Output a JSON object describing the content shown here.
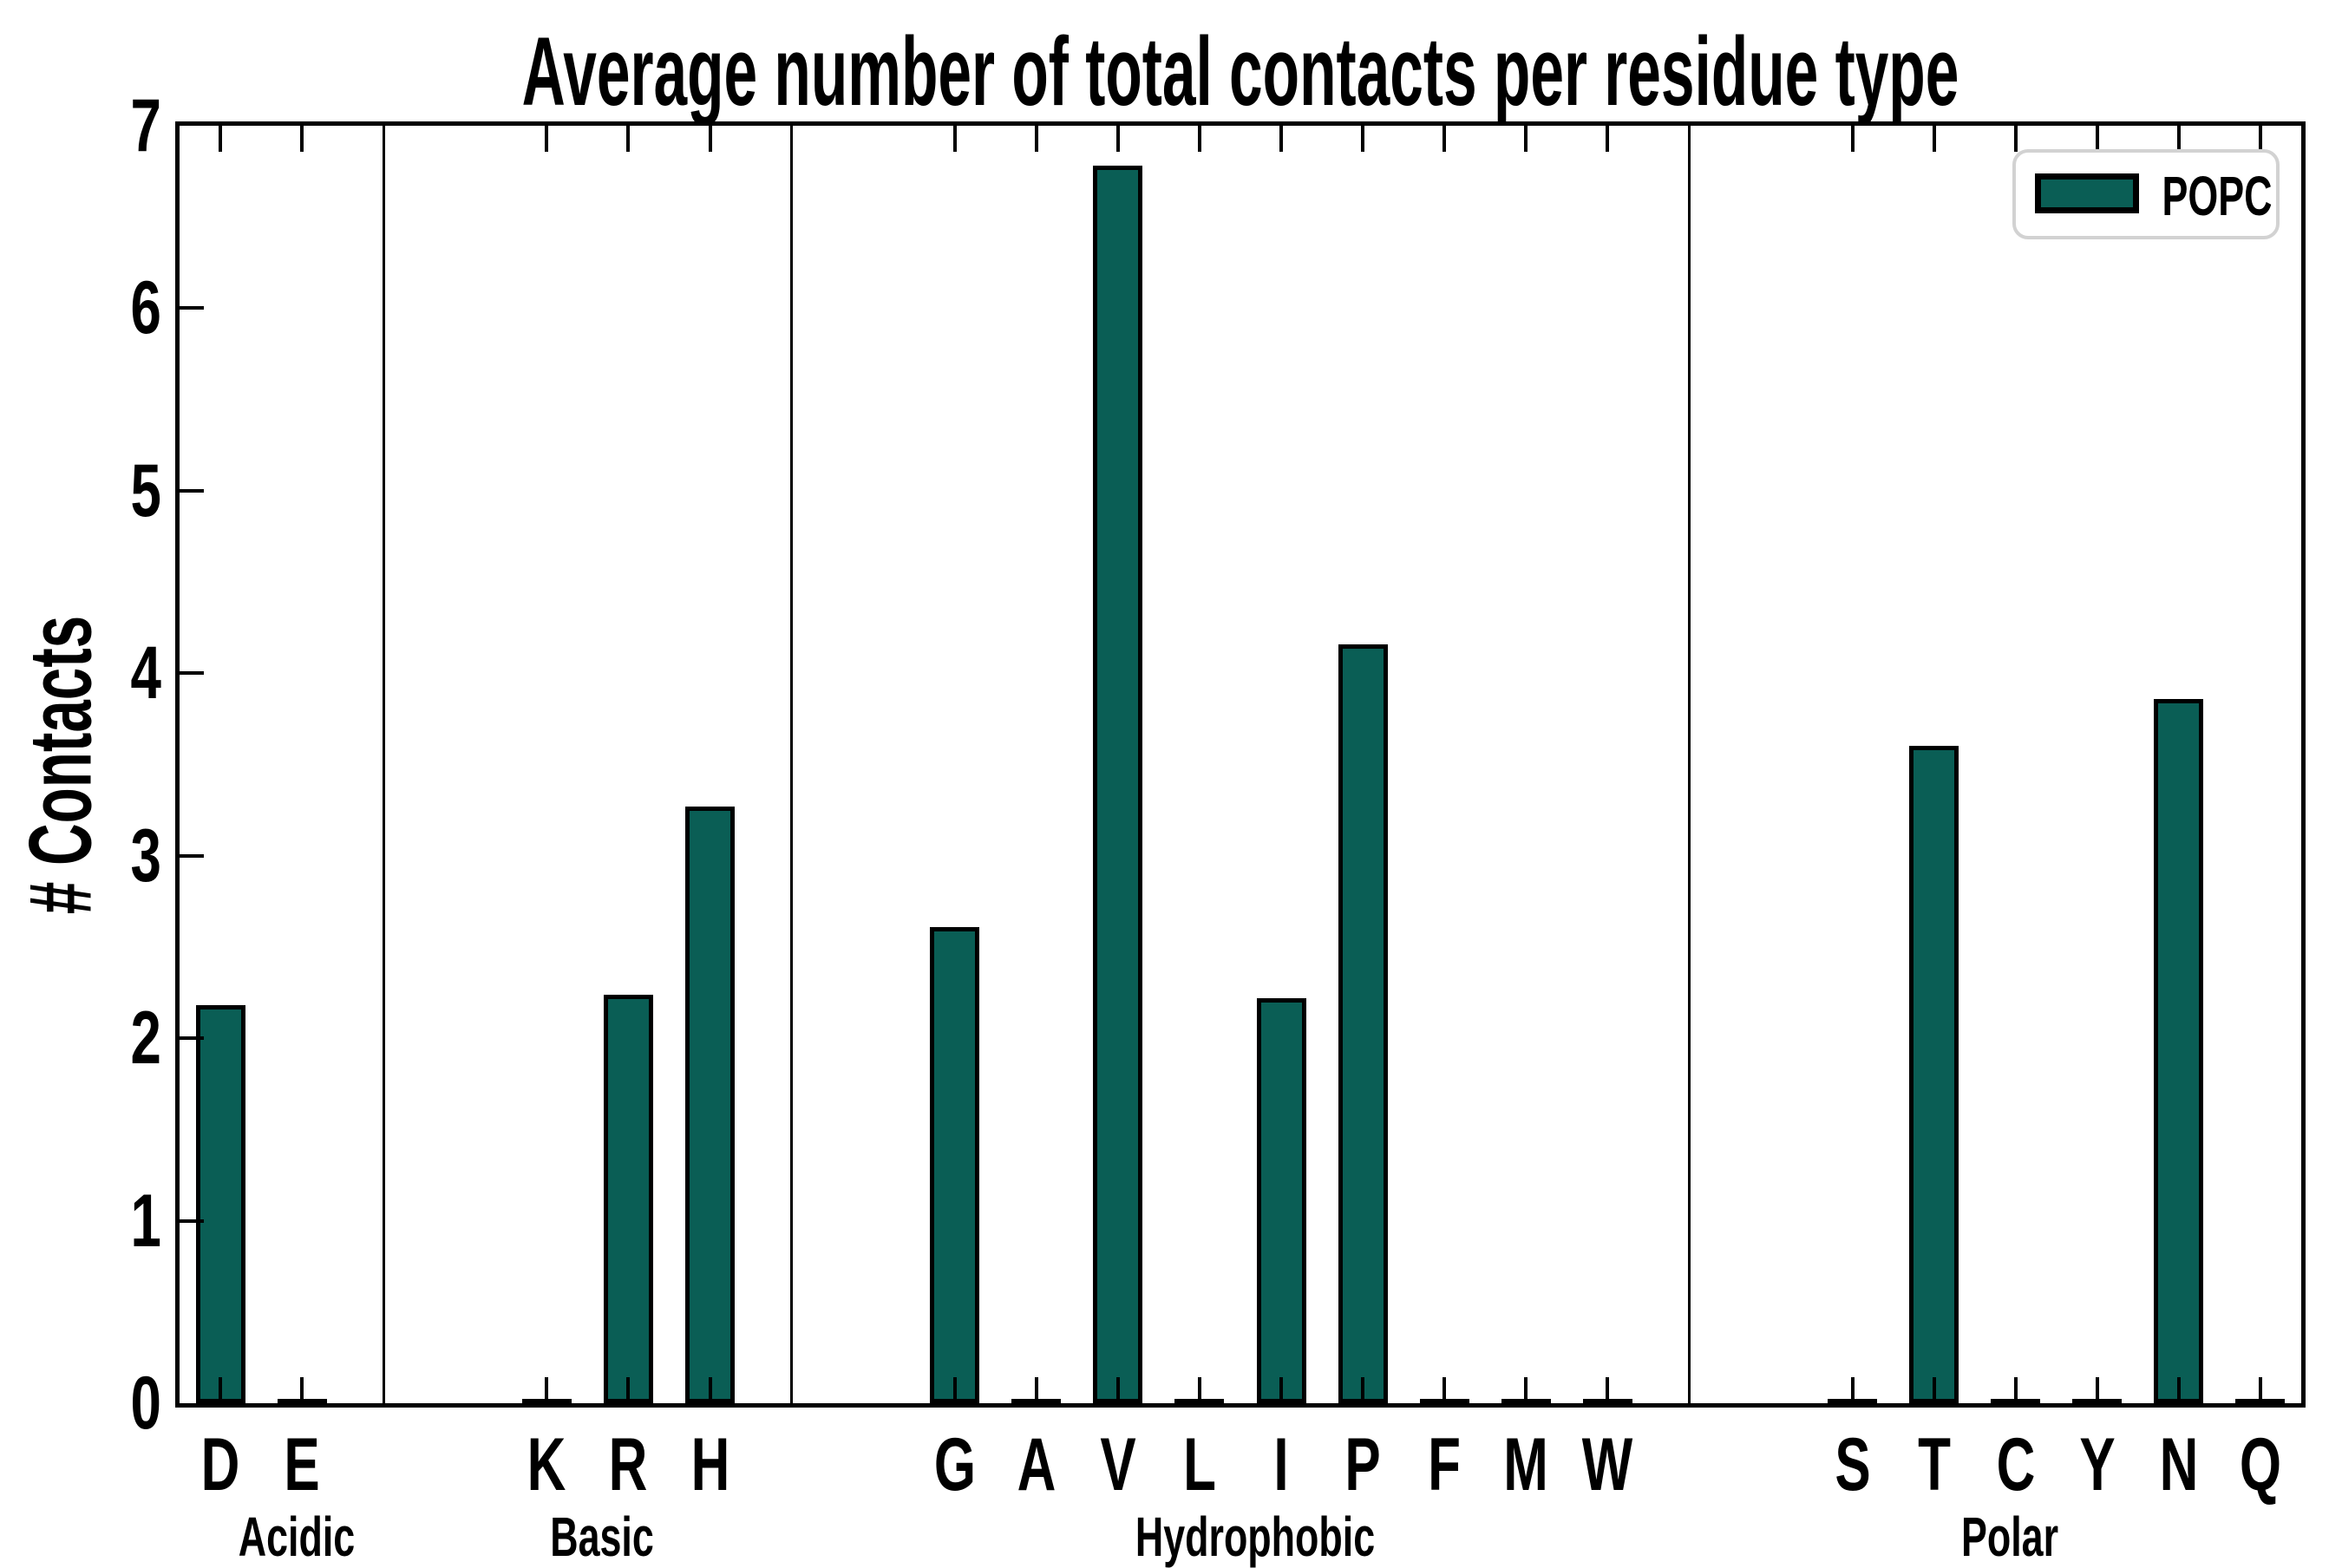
{
  "chart_data": {
    "type": "bar",
    "title": "Average number of total contacts per residue type",
    "xlabel": "",
    "ylabel": "# Contacts",
    "ylim": [
      0,
      7
    ],
    "yticks": [
      0,
      1,
      2,
      3,
      4,
      5,
      6,
      7
    ],
    "grid": false,
    "legend_label": "POPC",
    "legend_position": "upper right",
    "bar_color": "#0a5e55",
    "bar_edge_color": "#000000",
    "group_divider_color": "#000000",
    "legend_border_color": "#d2d2d2",
    "background_color": "#ffffff",
    "groups": [
      {
        "label": "Acidic",
        "categories": [
          "D",
          "E"
        ],
        "values": [
          2.18,
          0
        ]
      },
      {
        "label": "Basic",
        "categories": [
          "K",
          "R",
          "H"
        ],
        "values": [
          0,
          2.24,
          3.27
        ]
      },
      {
        "label": "Hydrophobic",
        "categories": [
          "G",
          "A",
          "V",
          "L",
          "I",
          "P",
          "F",
          "M",
          "W"
        ],
        "values": [
          2.61,
          0,
          6.78,
          0,
          2.22,
          4.16,
          0,
          0,
          0
        ]
      },
      {
        "label": "Polar",
        "categories": [
          "S",
          "T",
          "C",
          "Y",
          "N",
          "Q"
        ],
        "values": [
          0,
          3.6,
          0,
          0,
          3.86,
          0
        ]
      }
    ],
    "categories": [
      "D",
      "E",
      "K",
      "R",
      "H",
      "G",
      "A",
      "V",
      "L",
      "I",
      "P",
      "F",
      "M",
      "W",
      "S",
      "T",
      "C",
      "Y",
      "N",
      "Q"
    ],
    "series": [
      {
        "name": "POPC",
        "values": [
          2.18,
          0,
          0,
          2.24,
          3.27,
          2.61,
          0,
          6.78,
          0,
          2.22,
          4.16,
          0,
          0,
          0,
          0,
          3.6,
          0,
          0,
          3.86,
          0
        ]
      }
    ]
  }
}
